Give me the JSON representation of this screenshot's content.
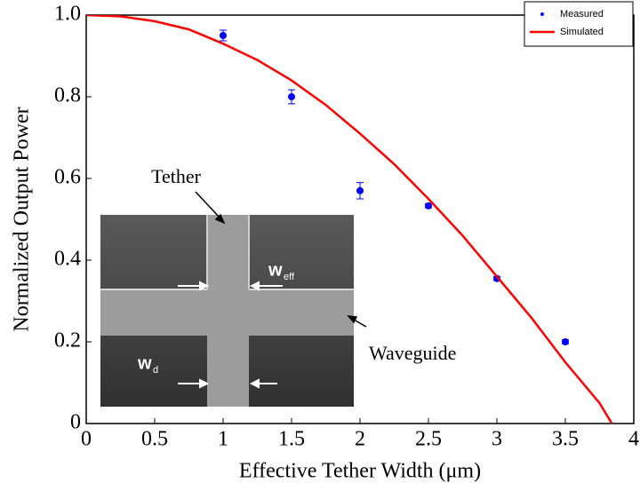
{
  "chart_data": {
    "type": "scatter",
    "xlabel": "Effective Tether Width (μm)",
    "ylabel": "Normalized Output Power",
    "xlim": [
      0,
      4
    ],
    "xticks": [
      0,
      0.5,
      1,
      1.5,
      2,
      2.5,
      3,
      3.5,
      4
    ],
    "ylim": [
      0,
      1
    ],
    "yticks": [
      0,
      0.2,
      0.4,
      0.6,
      0.8,
      {
        "value": 1,
        "label": "1.0"
      }
    ],
    "legend": "upper right",
    "series": [
      {
        "name": "Measured",
        "type": "scatter",
        "color": "#0000ff",
        "x": [
          1,
          1.5,
          2,
          2.5,
          3,
          3.5
        ],
        "values": [
          0.95,
          0.8,
          0.57,
          0.533,
          0.355,
          0.2
        ],
        "errors": [
          0.013,
          0.017,
          0.02,
          0.005,
          0.005,
          0.005
        ]
      },
      {
        "name": "Simulated",
        "type": "line",
        "color": "#ff0000",
        "x": [
          0,
          0.25,
          0.5,
          0.75,
          1,
          1.25,
          1.5,
          1.75,
          2,
          2.25,
          2.5,
          2.75,
          3,
          3.25,
          3.5,
          3.75,
          3.84
        ],
        "values": [
          1,
          0.997,
          0.985,
          0.965,
          0.93,
          0.89,
          0.84,
          0.78,
          0.71,
          0.635,
          0.55,
          0.46,
          0.36,
          0.26,
          0.15,
          0.05,
          0
        ]
      }
    ],
    "annotations": [
      {
        "text": "Tether"
      },
      {
        "text": "Waveguide"
      },
      {
        "text": "w"
      },
      {
        "text": "eff"
      },
      {
        "text": "w"
      },
      {
        "text": "d"
      }
    ]
  }
}
